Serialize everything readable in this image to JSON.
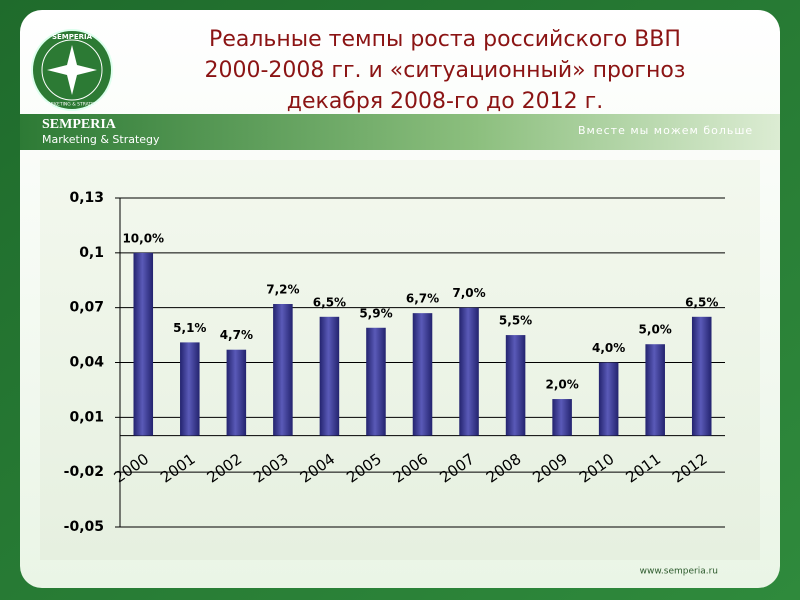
{
  "header": {
    "title": [
      "Реальные темпы роста российского ВВП",
      "2000-2008 гг. и «ситуационный» прогноз",
      "декабря 2008-го до 2012 г."
    ],
    "logo_top": "SEMPERIA",
    "logo_bottom": "MARKETING & STRATEGY",
    "brand": "SEMPERIA",
    "brand_sub": "Marketing & Strategy",
    "slogan": "Вместе мы можем больше"
  },
  "footer": {
    "url": "www.semperia.ru"
  },
  "chart_data": {
    "type": "bar",
    "categories": [
      "2000",
      "2001",
      "2002",
      "2003",
      "2004",
      "2005",
      "2006",
      "2007",
      "2008",
      "2009",
      "2010",
      "2011",
      "2012"
    ],
    "values": [
      0.1,
      0.051,
      0.047,
      0.072,
      0.065,
      0.059,
      0.067,
      0.07,
      0.055,
      0.02,
      0.04,
      0.05,
      0.065
    ],
    "value_labels": [
      "10,0%",
      "5,1%",
      "4,7%",
      "7,2%",
      "6,5%",
      "5,9%",
      "6,7%",
      "7,0%",
      "5,5%",
      "2,0%",
      "4,0%",
      "5,0%",
      "6,5%"
    ],
    "color": "#23236e",
    "ylim": [
      -0.05,
      0.13
    ],
    "yticks": [
      {
        "value": -0.05,
        "label": "-0,05"
      },
      {
        "value": -0.02,
        "label": "-0,02"
      },
      {
        "value": 0.01,
        "label": "0,01"
      },
      {
        "value": 0.04,
        "label": "0,04"
      },
      {
        "value": 0.07,
        "label": "0,07"
      },
      {
        "value": 0.1,
        "label": "0,1"
      },
      {
        "value": 0.13,
        "label": "0,13"
      }
    ],
    "grid": true
  }
}
